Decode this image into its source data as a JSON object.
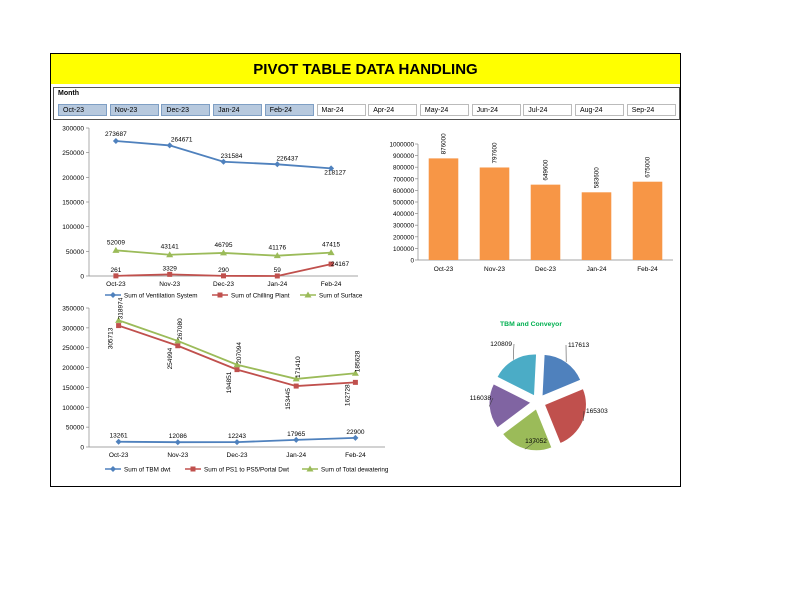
{
  "colors": {
    "title_bg": "#ffff00",
    "selected_slicer": "#b7c9de",
    "blue": "#4f81bd",
    "red": "#c0504d",
    "green": "#9bbb59",
    "orange": "#f79646",
    "purple": "#8064a2",
    "teal": "#4bacc6",
    "pie_title": "#00b050"
  },
  "header": {
    "title": "PIVOT TABLE DATA HANDLING"
  },
  "slicer": {
    "label": "Month",
    "items": [
      {
        "label": "Oct-23",
        "selected": true
      },
      {
        "label": "Nov-23",
        "selected": true
      },
      {
        "label": "Dec-23",
        "selected": true
      },
      {
        "label": "Jan-24",
        "selected": true
      },
      {
        "label": "Feb-24",
        "selected": true
      },
      {
        "label": "Mar-24",
        "selected": false
      },
      {
        "label": "Apr-24",
        "selected": false
      },
      {
        "label": "May-24",
        "selected": false
      },
      {
        "label": "Jun-24",
        "selected": false
      },
      {
        "label": "Jul-24",
        "selected": false
      },
      {
        "label": "Aug-24",
        "selected": false
      },
      {
        "label": "Sep-24",
        "selected": false
      }
    ]
  },
  "chart_data": [
    {
      "type": "line",
      "categories": [
        "Oct-23",
        "Nov-23",
        "Dec-23",
        "Jan-24",
        "Feb-24"
      ],
      "ylim": [
        0,
        300000
      ],
      "yticks": [
        "0",
        "50000",
        "100000",
        "150000",
        "200000",
        "250000",
        "300000"
      ],
      "series": [
        {
          "name": "Sum of Ventilation System",
          "color": "blue",
          "marker": "diamond",
          "values": [
            273687,
            264671,
            231584,
            226437,
            218127
          ],
          "labels": [
            "273687",
            "264671",
            "231584",
            "226437",
            "218127"
          ]
        },
        {
          "name": "Sum of Chilling Plant",
          "color": "red",
          "marker": "square",
          "values": [
            261,
            3329,
            290,
            59,
            24167
          ],
          "labels": [
            "261",
            "3329",
            "290",
            "59",
            "24167"
          ]
        },
        {
          "name": "Sum of Surface",
          "color": "green",
          "marker": "triangle",
          "values": [
            52009,
            43141,
            46795,
            41176,
            47415
          ],
          "labels": [
            "52009",
            "43141",
            "46795",
            "41176",
            "47415"
          ]
        }
      ]
    },
    {
      "type": "bar",
      "categories": [
        "Oct-23",
        "Nov-23",
        "Dec-23",
        "Jan-24",
        "Feb-24"
      ],
      "values": [
        876000,
        797600,
        649600,
        583600,
        675000
      ],
      "labels": [
        "876000",
        "797600",
        "649600",
        "583600",
        "675000"
      ],
      "ylim": [
        0,
        1000000
      ],
      "yticks": [
        "0",
        "100000",
        "200000",
        "300000",
        "400000",
        "500000",
        "600000",
        "700000",
        "800000",
        "900000",
        "1000000"
      ],
      "color": "orange"
    },
    {
      "type": "line",
      "categories": [
        "Oct-23",
        "Nov-23",
        "Dec-23",
        "Jan-24",
        "Feb-24"
      ],
      "ylim": [
        0,
        350000
      ],
      "yticks": [
        "0",
        "50000",
        "100000",
        "150000",
        "200000",
        "250000",
        "300000",
        "350000"
      ],
      "series": [
        {
          "name": "Sum of TBM dwt",
          "color": "blue",
          "marker": "diamond",
          "values": [
            13261,
            12086,
            12243,
            17965,
            22900
          ],
          "labels": [
            "13261",
            "12086",
            "12243",
            "17965",
            "22900"
          ]
        },
        {
          "name": "Sum of PS1 to PS5/Portal Dwt",
          "color": "red",
          "marker": "square",
          "values": [
            305713,
            254994,
            194851,
            153445,
            162728
          ],
          "labels": [
            "305713",
            "254994",
            "194851",
            "153445",
            "162728"
          ]
        },
        {
          "name": "Sum of Total dewatering",
          "color": "green",
          "marker": "triangle",
          "values": [
            318974,
            267080,
            207094,
            171410,
            185628
          ],
          "labels": [
            "318974",
            "267080",
            "207094",
            "171410",
            "185628"
          ]
        }
      ]
    },
    {
      "type": "pie",
      "title": "TBM and Conveyor",
      "values": [
        117613,
        165303,
        137052,
        116038,
        120809
      ],
      "labels": [
        "117613",
        "165303",
        "137052",
        "116038",
        "120809"
      ],
      "colors": [
        "blue",
        "red",
        "green",
        "purple",
        "teal"
      ]
    }
  ]
}
